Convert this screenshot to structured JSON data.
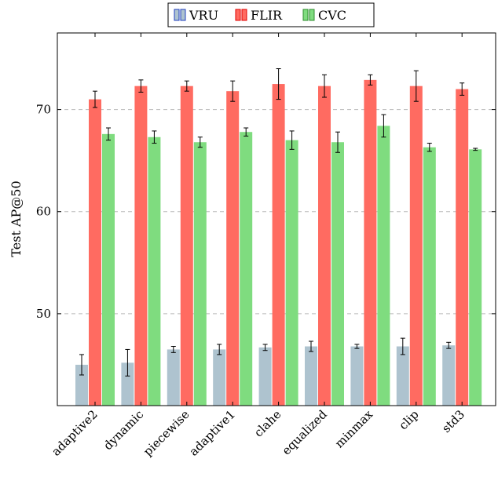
{
  "chart_data": {
    "type": "bar",
    "title": "",
    "xlabel": "",
    "ylabel": "Test AP@50",
    "ylim": [
      41,
      77.5
    ],
    "yticks": [
      50,
      60,
      70
    ],
    "grid": "y-dashed",
    "legend_position": "top-center",
    "categories": [
      "adaptive2",
      "dynamic",
      "piecewise",
      "adaptive1",
      "clahe",
      "equalized",
      "minmax",
      "clip",
      "std3"
    ],
    "series": [
      {
        "name": "VRU",
        "color": "#aec3cf",
        "legend_edge": "#1f3fbf",
        "values": [
          45.0,
          45.2,
          46.5,
          46.5,
          46.7,
          46.8,
          46.8,
          46.8,
          46.9
        ],
        "errors": [
          1.0,
          1.3,
          0.3,
          0.5,
          0.3,
          0.5,
          0.2,
          0.8,
          0.3
        ]
      },
      {
        "name": "FLIR",
        "color": "#ff6b61",
        "legend_edge": "#e00000",
        "values": [
          71.0,
          72.3,
          72.3,
          71.8,
          72.5,
          72.3,
          72.9,
          72.3,
          72.0
        ],
        "errors": [
          0.8,
          0.6,
          0.5,
          1.0,
          1.5,
          1.1,
          0.5,
          1.5,
          0.6
        ]
      },
      {
        "name": "CVC",
        "color": "#7fdc7f",
        "legend_edge": "#2e8b2e",
        "values": [
          67.6,
          67.3,
          66.8,
          67.8,
          67.0,
          66.8,
          68.4,
          66.3,
          66.1
        ],
        "errors": [
          0.6,
          0.6,
          0.5,
          0.4,
          0.9,
          1.0,
          1.1,
          0.4,
          0.1
        ]
      }
    ]
  }
}
